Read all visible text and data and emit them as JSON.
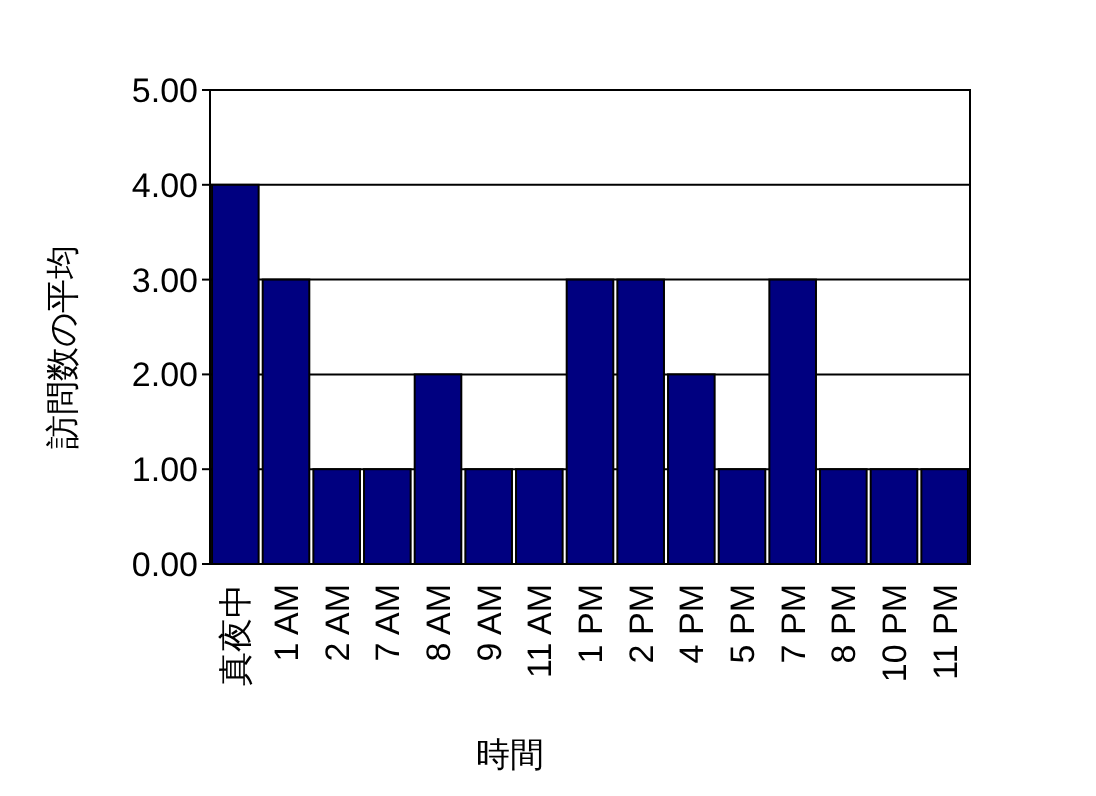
{
  "chart_data": {
    "type": "bar",
    "xlabel": "時間",
    "ylabel": "訪問数の平均",
    "categories": [
      "真夜中",
      "1 AM",
      "2 AM",
      "7 AM",
      "8 AM",
      "9 AM",
      "11 AM",
      "1 PM",
      "2 PM",
      "4 PM",
      "5 PM",
      "7 PM",
      "8 PM",
      "10 PM",
      "11 PM"
    ],
    "values": [
      4,
      3,
      1,
      1,
      2,
      1,
      1,
      3,
      3,
      2,
      1,
      3,
      1,
      1,
      1
    ],
    "color": "#000080",
    "ylim": [
      0,
      5
    ],
    "yticks": [
      {
        "value": 0,
        "label": "0.00"
      },
      {
        "value": 1,
        "label": "1.00"
      },
      {
        "value": 2,
        "label": "2.00"
      },
      {
        "value": 3,
        "label": "3.00"
      },
      {
        "value": 4,
        "label": "4.00"
      },
      {
        "value": 5,
        "label": "5.00"
      }
    ],
    "grid": "y"
  }
}
